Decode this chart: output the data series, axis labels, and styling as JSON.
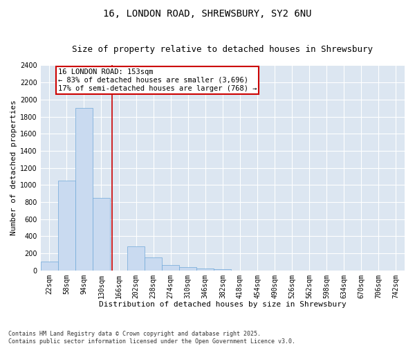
{
  "title_line1": "16, LONDON ROAD, SHREWSBURY, SY2 6NU",
  "title_line2": "Size of property relative to detached houses in Shrewsbury",
  "xlabel": "Distribution of detached houses by size in Shrewsbury",
  "ylabel": "Number of detached properties",
  "bin_labels": [
    "22sqm",
    "58sqm",
    "94sqm",
    "130sqm",
    "166sqm",
    "202sqm",
    "238sqm",
    "274sqm",
    "310sqm",
    "346sqm",
    "382sqm",
    "418sqm",
    "454sqm",
    "490sqm",
    "526sqm",
    "562sqm",
    "598sqm",
    "634sqm",
    "670sqm",
    "706sqm",
    "742sqm"
  ],
  "bar_values": [
    100,
    1050,
    1900,
    850,
    0,
    280,
    150,
    60,
    40,
    20,
    10,
    0,
    0,
    0,
    0,
    0,
    0,
    0,
    0,
    0,
    0
  ],
  "bar_color": "#c9daf0",
  "bar_edge_color": "#6fa8d8",
  "background_color": "#dce6f1",
  "grid_color": "#ffffff",
  "vline_color": "#cc0000",
  "annotation_text": "16 LONDON ROAD: 153sqm\n← 83% of detached houses are smaller (3,696)\n17% of semi-detached houses are larger (768) →",
  "annotation_box_color": "#ffffff",
  "annotation_box_edge": "#cc0000",
  "ylim": [
    0,
    2400
  ],
  "yticks": [
    0,
    200,
    400,
    600,
    800,
    1000,
    1200,
    1400,
    1600,
    1800,
    2000,
    2200,
    2400
  ],
  "footnote": "Contains HM Land Registry data © Crown copyright and database right 2025.\nContains public sector information licensed under the Open Government Licence v3.0.",
  "title_fontsize": 10,
  "subtitle_fontsize": 9,
  "axis_label_fontsize": 8,
  "tick_fontsize": 7,
  "annotation_fontsize": 7.5
}
